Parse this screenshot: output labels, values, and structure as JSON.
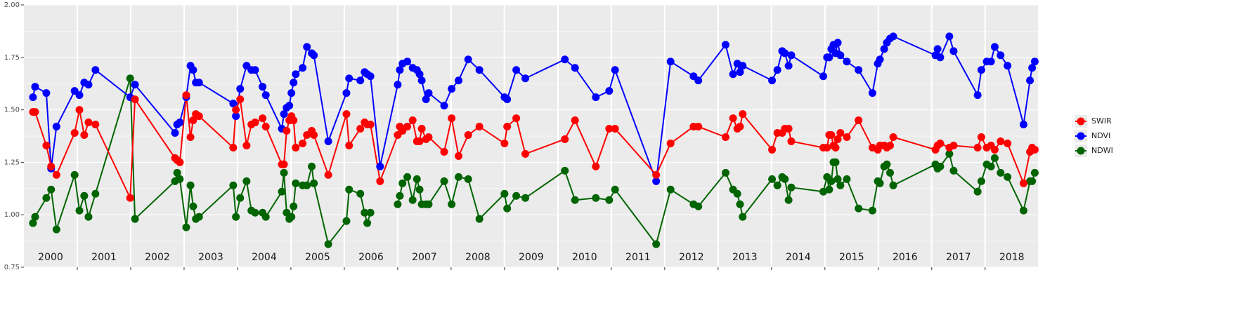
{
  "chart_data": {
    "type": "line",
    "x": [
      2000.17,
      2000.21,
      2000.42,
      2000.51,
      2000.61,
      2000.95,
      2001.04,
      2001.13,
      2001.21,
      2001.34,
      2001.99,
      2002.08,
      2002.83,
      2002.87,
      2002.92,
      2003.04,
      2003.12,
      2003.17,
      2003.22,
      2003.28,
      2003.92,
      2003.97,
      2004.05,
      2004.17,
      2004.26,
      2004.33,
      2004.47,
      2004.53,
      2004.83,
      2004.87,
      2004.92,
      2004.97,
      2005.01,
      2005.05,
      2005.09,
      2005.22,
      2005.3,
      2005.39,
      2005.43,
      2005.7,
      2006.04,
      2006.09,
      2006.3,
      2006.38,
      2006.43,
      2006.49,
      2006.67,
      2007.0,
      2007.04,
      2007.09,
      2007.18,
      2007.28,
      2007.36,
      2007.41,
      2007.45,
      2007.53,
      2007.58,
      2007.87,
      2008.01,
      2008.14,
      2008.32,
      2008.53,
      2009.0,
      2009.05,
      2009.22,
      2009.39,
      2010.13,
      2010.32,
      2010.71,
      2010.96,
      2011.07,
      2011.84,
      2012.11,
      2012.54,
      2012.63,
      2013.14,
      2013.28,
      2013.36,
      2013.41,
      2013.46,
      2014.01,
      2014.11,
      2014.2,
      2014.25,
      2014.32,
      2014.37,
      2014.97,
      2015.04,
      2015.08,
      2015.12,
      2015.16,
      2015.2,
      2015.24,
      2015.29,
      2015.41,
      2015.63,
      2015.89,
      2015.99,
      2016.03,
      2016.11,
      2016.16,
      2016.22,
      2016.28,
      2017.07,
      2017.11,
      2017.16,
      2017.33,
      2017.41,
      2017.86,
      2017.93,
      2018.03,
      2018.11,
      2018.18,
      2018.29,
      2018.42,
      2018.72,
      2018.84,
      2018.88,
      2018.93
    ],
    "series": [
      {
        "name": "SWIR",
        "color": "#ff0000",
        "values": [
          1.49,
          1.49,
          1.33,
          1.23,
          1.19,
          1.39,
          1.5,
          1.38,
          1.44,
          1.43,
          1.08,
          1.55,
          1.27,
          1.26,
          1.25,
          1.57,
          1.37,
          1.45,
          1.48,
          1.47,
          1.32,
          1.5,
          1.55,
          1.33,
          1.43,
          1.44,
          1.46,
          1.42,
          1.24,
          1.24,
          1.4,
          1.45,
          1.47,
          1.45,
          1.32,
          1.34,
          1.38,
          1.4,
          1.38,
          1.19,
          1.48,
          1.33,
          1.41,
          1.44,
          1.43,
          1.43,
          1.16,
          1.38,
          1.42,
          1.4,
          1.42,
          1.45,
          1.35,
          1.35,
          1.41,
          1.36,
          1.37,
          1.3,
          1.46,
          1.28,
          1.38,
          1.42,
          1.34,
          1.42,
          1.46,
          1.29,
          1.36,
          1.45,
          1.23,
          1.41,
          1.41,
          1.19,
          1.34,
          1.42,
          1.42,
          1.37,
          1.46,
          1.41,
          1.42,
          1.48,
          1.31,
          1.39,
          1.39,
          1.41,
          1.41,
          1.35,
          1.32,
          1.32,
          1.38,
          1.38,
          1.33,
          1.32,
          1.36,
          1.39,
          1.37,
          1.45,
          1.32,
          1.31,
          1.33,
          1.33,
          1.32,
          1.33,
          1.37,
          1.31,
          1.33,
          1.34,
          1.32,
          1.33,
          1.32,
          1.37,
          1.32,
          1.33,
          1.31,
          1.35,
          1.34,
          1.15,
          1.3,
          1.32,
          1.31
        ]
      },
      {
        "name": "NDVI",
        "color": "#0000ff",
        "values": [
          1.56,
          1.61,
          1.58,
          1.22,
          1.42,
          1.59,
          1.57,
          1.63,
          1.62,
          1.69,
          1.56,
          1.62,
          1.39,
          1.43,
          1.44,
          1.56,
          1.71,
          1.69,
          1.63,
          1.63,
          1.53,
          1.47,
          1.6,
          1.71,
          1.69,
          1.69,
          1.61,
          1.57,
          1.41,
          1.48,
          1.51,
          1.52,
          1.58,
          1.63,
          1.67,
          1.7,
          1.8,
          1.77,
          1.76,
          1.35,
          1.58,
          1.65,
          1.64,
          1.68,
          1.67,
          1.66,
          1.23,
          1.62,
          1.69,
          1.72,
          1.73,
          1.7,
          1.69,
          1.67,
          1.64,
          1.55,
          1.58,
          1.52,
          1.6,
          1.64,
          1.74,
          1.69,
          1.56,
          1.55,
          1.69,
          1.65,
          1.74,
          1.7,
          1.56,
          1.59,
          1.69,
          1.16,
          1.73,
          1.66,
          1.64,
          1.81,
          1.67,
          1.72,
          1.68,
          1.71,
          1.64,
          1.69,
          1.78,
          1.77,
          1.71,
          1.76,
          1.66,
          1.75,
          1.75,
          1.79,
          1.81,
          1.77,
          1.82,
          1.76,
          1.73,
          1.69,
          1.58,
          1.72,
          1.74,
          1.79,
          1.82,
          1.84,
          1.85,
          1.76,
          1.79,
          1.75,
          1.85,
          1.78,
          1.57,
          1.69,
          1.73,
          1.73,
          1.8,
          1.76,
          1.71,
          1.43,
          1.64,
          1.7,
          1.73
        ]
      },
      {
        "name": "NDWI",
        "color": "#006400",
        "values": [
          0.96,
          0.99,
          1.08,
          1.12,
          0.93,
          1.19,
          1.02,
          1.09,
          0.99,
          1.1,
          1.65,
          0.98,
          1.16,
          1.2,
          1.17,
          0.94,
          1.14,
          1.04,
          0.98,
          0.99,
          1.14,
          0.99,
          1.08,
          1.16,
          1.02,
          1.01,
          1.01,
          0.99,
          1.11,
          1.2,
          1.01,
          0.98,
          0.99,
          1.04,
          1.15,
          1.14,
          1.14,
          1.23,
          1.15,
          0.86,
          0.97,
          1.12,
          1.1,
          1.01,
          0.96,
          1.01,
          null,
          1.05,
          1.09,
          1.15,
          1.18,
          1.07,
          1.17,
          1.12,
          1.05,
          1.05,
          1.05,
          1.16,
          1.05,
          1.18,
          1.17,
          0.98,
          1.1,
          1.03,
          1.09,
          1.08,
          1.21,
          1.07,
          1.08,
          1.07,
          1.12,
          0.86,
          1.12,
          1.05,
          1.04,
          1.2,
          1.12,
          1.1,
          1.05,
          0.99,
          1.17,
          1.14,
          1.18,
          1.17,
          1.07,
          1.13,
          1.11,
          1.18,
          1.12,
          1.16,
          1.25,
          1.25,
          1.17,
          1.14,
          1.17,
          1.03,
          1.02,
          1.16,
          1.15,
          1.23,
          1.24,
          1.2,
          1.14,
          1.24,
          1.22,
          1.23,
          1.29,
          1.21,
          1.11,
          1.16,
          1.24,
          1.23,
          1.27,
          1.2,
          1.18,
          1.02,
          1.16,
          1.16,
          1.2
        ]
      }
    ],
    "xlim": [
      2000,
      2018.99
    ],
    "xticks": [
      {
        "value": 2000.5,
        "label": "2000"
      },
      {
        "value": 2001.5,
        "label": "2001"
      },
      {
        "value": 2002.5,
        "label": "2002"
      },
      {
        "value": 2003.5,
        "label": "2003"
      },
      {
        "value": 2004.5,
        "label": "2004"
      },
      {
        "value": 2005.5,
        "label": "2005"
      },
      {
        "value": 2006.5,
        "label": "2006"
      },
      {
        "value": 2007.5,
        "label": "2007"
      },
      {
        "value": 2008.5,
        "label": "2008"
      },
      {
        "value": 2009.5,
        "label": "2009"
      },
      {
        "value": 2010.5,
        "label": "2010"
      },
      {
        "value": 2011.5,
        "label": "2011"
      },
      {
        "value": 2012.5,
        "label": "2012"
      },
      {
        "value": 2013.5,
        "label": "2013"
      },
      {
        "value": 2014.5,
        "label": "2014"
      },
      {
        "value": 2015.5,
        "label": "2015"
      },
      {
        "value": 2016.5,
        "label": "2016"
      },
      {
        "value": 2017.5,
        "label": "2017"
      },
      {
        "value": 2018.5,
        "label": "2018"
      }
    ],
    "xgrid": [
      2001,
      2002,
      2003,
      2004,
      2005,
      2006,
      2007,
      2008,
      2009,
      2010,
      2011,
      2012,
      2013,
      2014,
      2015,
      2016,
      2017,
      2018
    ],
    "ylim": [
      0.75,
      2.0
    ],
    "yticks": [
      {
        "value": 0.75,
        "label": "0.75"
      },
      {
        "value": 1,
        "label": "1.00"
      },
      {
        "value": 1.25,
        "label": "1.25"
      },
      {
        "value": 1.5,
        "label": "1.50"
      },
      {
        "value": 1.75,
        "label": "1.75"
      },
      {
        "value": 2,
        "label": "2.00"
      }
    ],
    "grid": true,
    "legend": "right"
  }
}
